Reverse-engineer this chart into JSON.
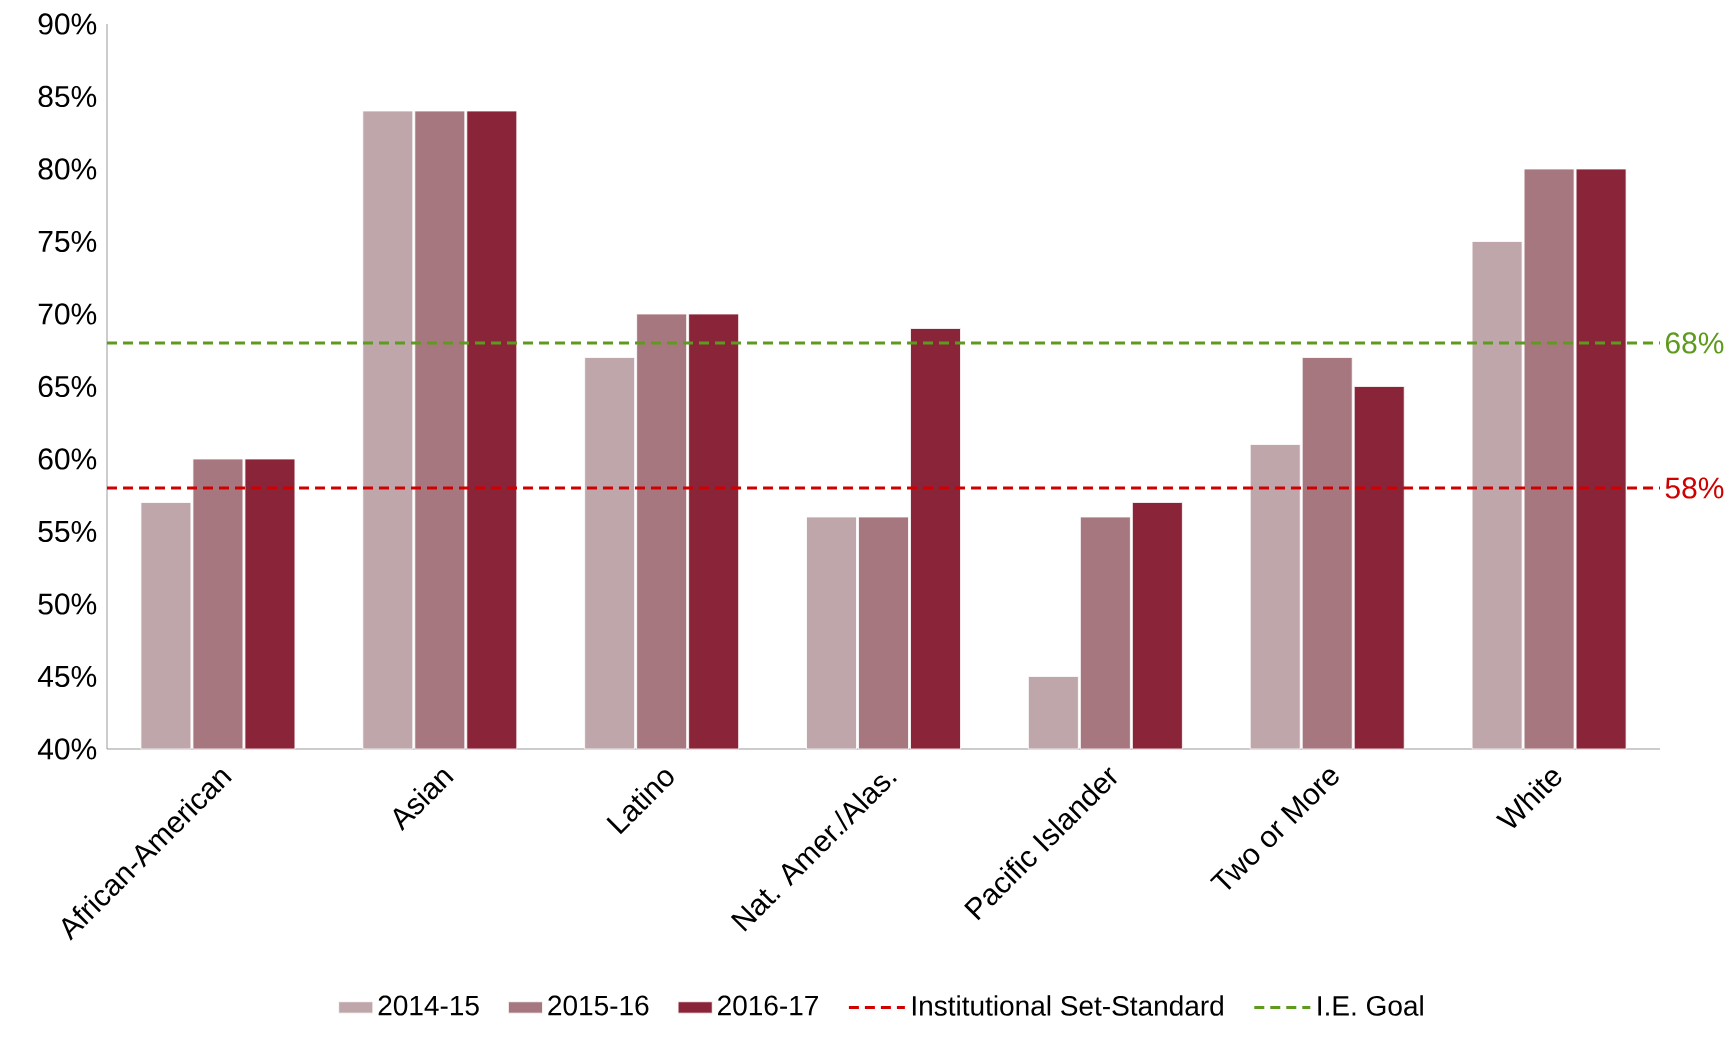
{
  "chart_data": {
    "type": "bar",
    "categories": [
      "African-American",
      "Asian",
      "Latino",
      "Nat. Amer./Alas.",
      "Pacific Islander",
      "Two or More",
      "White"
    ],
    "series": [
      {
        "name": "2014-15",
        "color": "#bfa6ab",
        "values": [
          57,
          84,
          67,
          56,
          45,
          61,
          75
        ]
      },
      {
        "name": "2015-16",
        "color": "#a7777f",
        "values": [
          60,
          84,
          70,
          56,
          56,
          67,
          80
        ]
      },
      {
        "name": "2016-17",
        "color": "#8a2439",
        "values": [
          60,
          84,
          70,
          69,
          57,
          65,
          80
        ]
      }
    ],
    "ylim": [
      40,
      90
    ],
    "yticks": [
      {
        "value": 40,
        "label": "40%"
      },
      {
        "value": 45,
        "label": "45%"
      },
      {
        "value": 50,
        "label": "50%"
      },
      {
        "value": 55,
        "label": "55%"
      },
      {
        "value": 60,
        "label": "60%"
      },
      {
        "value": 65,
        "label": "65%"
      },
      {
        "value": 70,
        "label": "70%"
      },
      {
        "value": 75,
        "label": "75%"
      },
      {
        "value": 80,
        "label": "80%"
      },
      {
        "value": 85,
        "label": "85%"
      },
      {
        "value": 90,
        "label": "90%"
      }
    ],
    "ref_lines": [
      {
        "axis": "y",
        "value": 58,
        "label": "Institutional Set-Standard",
        "color": "#d00000",
        "line_style": "dashed"
      },
      {
        "axis": "y",
        "value": 68,
        "label": "I.E. Goal",
        "color": "#5e9a1e",
        "line_style": "dashed"
      }
    ],
    "annotations": [
      "58%",
      "68%"
    ],
    "legend": "bottom",
    "grid": false
  }
}
